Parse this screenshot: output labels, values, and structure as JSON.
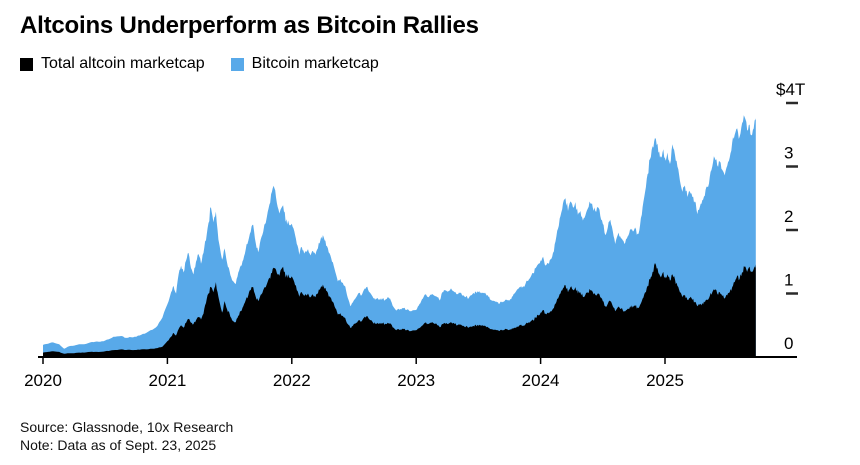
{
  "title": "Altcoins Underperform as Bitcoin Rallies",
  "legend": {
    "items": [
      {
        "label": "Total altcoin marketcap",
        "color": "#000000"
      },
      {
        "label": "Bitcoin marketcap",
        "color": "#58a9e9"
      }
    ]
  },
  "footer": {
    "source": "Source: Glassnode, 10x Research",
    "note": "Note: Data as of Sept. 23, 2025"
  },
  "chart_data": {
    "type": "area",
    "stacked": true,
    "title": "Altcoins Underperform as Bitcoin Rallies",
    "unit": "USD trillions",
    "xlim": [
      2020.0,
      2025.73
    ],
    "ylim": [
      0,
      4
    ],
    "x_ticks": [
      2020,
      2021,
      2022,
      2023,
      2024,
      2025
    ],
    "y_ticks": [
      0,
      1,
      2,
      3,
      4
    ],
    "y_tick_labels": [
      "0",
      "1",
      "2",
      "3",
      "$4T"
    ],
    "grid": false,
    "legend_position": "top-left",
    "series_names": [
      "Total altcoin marketcap",
      "Bitcoin marketcap"
    ],
    "series_colors": [
      "#000000",
      "#58a9e9"
    ],
    "points_format": [
      "year_decimal",
      "altcoin_marketcap_T",
      "bitcoin_marketcap_T"
    ],
    "points": [
      [
        2020.0,
        0.07,
        0.12
      ],
      [
        2020.04,
        0.08,
        0.13
      ],
      [
        2020.08,
        0.09,
        0.14
      ],
      [
        2020.13,
        0.08,
        0.12
      ],
      [
        2020.17,
        0.05,
        0.08
      ],
      [
        2020.21,
        0.06,
        0.11
      ],
      [
        2020.25,
        0.06,
        0.12
      ],
      [
        2020.29,
        0.07,
        0.13
      ],
      [
        2020.33,
        0.07,
        0.13
      ],
      [
        2020.38,
        0.08,
        0.15
      ],
      [
        2020.42,
        0.08,
        0.16
      ],
      [
        2020.46,
        0.08,
        0.16
      ],
      [
        2020.5,
        0.09,
        0.17
      ],
      [
        2020.54,
        0.1,
        0.19
      ],
      [
        2020.58,
        0.11,
        0.21
      ],
      [
        2020.63,
        0.12,
        0.21
      ],
      [
        2020.67,
        0.11,
        0.19
      ],
      [
        2020.71,
        0.11,
        0.2
      ],
      [
        2020.75,
        0.11,
        0.21
      ],
      [
        2020.79,
        0.12,
        0.23
      ],
      [
        2020.83,
        0.12,
        0.26
      ],
      [
        2020.88,
        0.13,
        0.3
      ],
      [
        2020.92,
        0.14,
        0.35
      ],
      [
        2020.96,
        0.16,
        0.46
      ],
      [
        2021.0,
        0.25,
        0.58
      ],
      [
        2021.03,
        0.32,
        0.7
      ],
      [
        2021.05,
        0.38,
        0.74
      ],
      [
        2021.07,
        0.34,
        0.66
      ],
      [
        2021.09,
        0.44,
        0.86
      ],
      [
        2021.11,
        0.5,
        0.94
      ],
      [
        2021.13,
        0.46,
        0.87
      ],
      [
        2021.15,
        0.54,
        0.98
      ],
      [
        2021.17,
        0.6,
        1.04
      ],
      [
        2021.19,
        0.54,
        0.86
      ],
      [
        2021.21,
        0.52,
        0.78
      ],
      [
        2021.23,
        0.58,
        0.92
      ],
      [
        2021.25,
        0.63,
        0.99
      ],
      [
        2021.27,
        0.59,
        0.88
      ],
      [
        2021.29,
        0.68,
        0.96
      ],
      [
        2021.31,
        0.85,
        0.99
      ],
      [
        2021.33,
        1.0,
        1.11
      ],
      [
        2021.35,
        1.1,
        1.26
      ],
      [
        2021.37,
        1.02,
        1.1
      ],
      [
        2021.39,
        1.18,
        1.11
      ],
      [
        2021.41,
        0.95,
        0.9
      ],
      [
        2021.44,
        0.7,
        0.83
      ],
      [
        2021.46,
        0.88,
        0.83
      ],
      [
        2021.48,
        0.75,
        0.73
      ],
      [
        2021.5,
        0.68,
        0.67
      ],
      [
        2021.52,
        0.58,
        0.63
      ],
      [
        2021.55,
        0.55,
        0.6
      ],
      [
        2021.57,
        0.65,
        0.68
      ],
      [
        2021.59,
        0.72,
        0.72
      ],
      [
        2021.61,
        0.8,
        0.73
      ],
      [
        2021.63,
        0.9,
        0.8
      ],
      [
        2021.65,
        0.97,
        0.86
      ],
      [
        2021.67,
        1.05,
        0.92
      ],
      [
        2021.69,
        1.1,
        0.98
      ],
      [
        2021.71,
        0.95,
        0.85
      ],
      [
        2021.73,
        0.88,
        0.77
      ],
      [
        2021.75,
        0.98,
        0.87
      ],
      [
        2021.77,
        1.05,
        0.92
      ],
      [
        2021.8,
        1.15,
        1.06
      ],
      [
        2021.82,
        1.25,
        1.15
      ],
      [
        2021.84,
        1.32,
        1.28
      ],
      [
        2021.86,
        1.4,
        1.26
      ],
      [
        2021.88,
        1.32,
        1.1
      ],
      [
        2021.9,
        1.28,
        0.98
      ],
      [
        2021.93,
        1.42,
        0.97
      ],
      [
        2021.95,
        1.25,
        0.88
      ],
      [
        2021.97,
        1.3,
        0.85
      ],
      [
        2022.0,
        1.27,
        0.83
      ],
      [
        2022.02,
        1.18,
        0.8
      ],
      [
        2022.04,
        1.05,
        0.73
      ],
      [
        2022.06,
        0.95,
        0.66
      ],
      [
        2022.08,
        1.02,
        0.71
      ],
      [
        2022.1,
        0.96,
        0.67
      ],
      [
        2022.13,
        1.0,
        0.7
      ],
      [
        2022.15,
        0.94,
        0.66
      ],
      [
        2022.17,
        0.98,
        0.69
      ],
      [
        2022.19,
        0.94,
        0.67
      ],
      [
        2022.21,
        1.0,
        0.71
      ],
      [
        2022.23,
        1.08,
        0.76
      ],
      [
        2022.25,
        1.14,
        0.78
      ],
      [
        2022.27,
        1.09,
        0.74
      ],
      [
        2022.29,
        1.01,
        0.7
      ],
      [
        2022.31,
        0.94,
        0.66
      ],
      [
        2022.33,
        0.87,
        0.62
      ],
      [
        2022.35,
        0.77,
        0.57
      ],
      [
        2022.37,
        0.67,
        0.52
      ],
      [
        2022.39,
        0.69,
        0.54
      ],
      [
        2022.41,
        0.65,
        0.52
      ],
      [
        2022.43,
        0.61,
        0.5
      ],
      [
        2022.45,
        0.52,
        0.41
      ],
      [
        2022.47,
        0.46,
        0.34
      ],
      [
        2022.49,
        0.49,
        0.37
      ],
      [
        2022.52,
        0.54,
        0.41
      ],
      [
        2022.54,
        0.58,
        0.43
      ],
      [
        2022.56,
        0.56,
        0.41
      ],
      [
        2022.58,
        0.62,
        0.44
      ],
      [
        2022.6,
        0.64,
        0.46
      ],
      [
        2022.62,
        0.6,
        0.43
      ],
      [
        2022.65,
        0.55,
        0.4
      ],
      [
        2022.67,
        0.52,
        0.38
      ],
      [
        2022.69,
        0.54,
        0.39
      ],
      [
        2022.71,
        0.52,
        0.38
      ],
      [
        2022.73,
        0.53,
        0.39
      ],
      [
        2022.75,
        0.52,
        0.38
      ],
      [
        2022.77,
        0.54,
        0.4
      ],
      [
        2022.79,
        0.53,
        0.39
      ],
      [
        2022.81,
        0.47,
        0.34
      ],
      [
        2022.84,
        0.42,
        0.31
      ],
      [
        2022.86,
        0.44,
        0.32
      ],
      [
        2022.88,
        0.43,
        0.32
      ],
      [
        2022.9,
        0.44,
        0.33
      ],
      [
        2022.92,
        0.42,
        0.32
      ],
      [
        2022.96,
        0.41,
        0.31
      ],
      [
        2023.0,
        0.42,
        0.32
      ],
      [
        2023.02,
        0.45,
        0.36
      ],
      [
        2023.04,
        0.48,
        0.4
      ],
      [
        2023.06,
        0.52,
        0.43
      ],
      [
        2023.08,
        0.54,
        0.44
      ],
      [
        2023.1,
        0.52,
        0.42
      ],
      [
        2023.12,
        0.54,
        0.44
      ],
      [
        2023.15,
        0.52,
        0.44
      ],
      [
        2023.17,
        0.5,
        0.44
      ],
      [
        2023.19,
        0.47,
        0.42
      ],
      [
        2023.21,
        0.52,
        0.5
      ],
      [
        2023.23,
        0.53,
        0.52
      ],
      [
        2023.25,
        0.52,
        0.51
      ],
      [
        2023.28,
        0.55,
        0.53
      ],
      [
        2023.31,
        0.52,
        0.5
      ],
      [
        2023.33,
        0.5,
        0.49
      ],
      [
        2023.35,
        0.51,
        0.5
      ],
      [
        2023.38,
        0.49,
        0.48
      ],
      [
        2023.4,
        0.48,
        0.47
      ],
      [
        2023.42,
        0.46,
        0.46
      ],
      [
        2023.46,
        0.49,
        0.52
      ],
      [
        2023.48,
        0.5,
        0.53
      ],
      [
        2023.5,
        0.49,
        0.53
      ],
      [
        2023.52,
        0.5,
        0.52
      ],
      [
        2023.54,
        0.49,
        0.52
      ],
      [
        2023.56,
        0.48,
        0.51
      ],
      [
        2023.58,
        0.46,
        0.49
      ],
      [
        2023.6,
        0.44,
        0.46
      ],
      [
        2023.63,
        0.43,
        0.45
      ],
      [
        2023.65,
        0.42,
        0.44
      ],
      [
        2023.67,
        0.41,
        0.43
      ],
      [
        2023.69,
        0.42,
        0.44
      ],
      [
        2023.71,
        0.43,
        0.45
      ],
      [
        2023.73,
        0.44,
        0.46
      ],
      [
        2023.75,
        0.43,
        0.46
      ],
      [
        2023.77,
        0.45,
        0.5
      ],
      [
        2023.79,
        0.46,
        0.54
      ],
      [
        2023.81,
        0.48,
        0.58
      ],
      [
        2023.83,
        0.5,
        0.6
      ],
      [
        2023.85,
        0.49,
        0.6
      ],
      [
        2023.88,
        0.52,
        0.64
      ],
      [
        2023.9,
        0.54,
        0.66
      ],
      [
        2023.92,
        0.56,
        0.7
      ],
      [
        2023.94,
        0.58,
        0.74
      ],
      [
        2023.96,
        0.62,
        0.78
      ],
      [
        2023.98,
        0.66,
        0.8
      ],
      [
        2024.0,
        0.7,
        0.82
      ],
      [
        2024.02,
        0.74,
        0.84
      ],
      [
        2024.04,
        0.68,
        0.76
      ],
      [
        2024.06,
        0.7,
        0.78
      ],
      [
        2024.08,
        0.72,
        0.82
      ],
      [
        2024.1,
        0.76,
        0.88
      ],
      [
        2024.12,
        0.84,
        0.98
      ],
      [
        2024.14,
        0.92,
        1.1
      ],
      [
        2024.16,
        1.0,
        1.22
      ],
      [
        2024.18,
        1.08,
        1.34
      ],
      [
        2024.2,
        1.13,
        1.37
      ],
      [
        2024.22,
        1.02,
        1.28
      ],
      [
        2024.24,
        1.1,
        1.35
      ],
      [
        2024.26,
        1.06,
        1.3
      ],
      [
        2024.28,
        1.1,
        1.34
      ],
      [
        2024.3,
        1.0,
        1.24
      ],
      [
        2024.32,
        1.02,
        1.28
      ],
      [
        2024.34,
        0.95,
        1.2
      ],
      [
        2024.36,
        0.98,
        1.25
      ],
      [
        2024.38,
        1.02,
        1.32
      ],
      [
        2024.4,
        1.05,
        1.37
      ],
      [
        2024.42,
        1.02,
        1.33
      ],
      [
        2024.44,
        0.98,
        1.32
      ],
      [
        2024.46,
        1.0,
        1.36
      ],
      [
        2024.48,
        0.94,
        1.28
      ],
      [
        2024.5,
        0.88,
        1.22
      ],
      [
        2024.52,
        0.8,
        1.12
      ],
      [
        2024.54,
        0.84,
        1.2
      ],
      [
        2024.56,
        0.88,
        1.28
      ],
      [
        2024.58,
        0.8,
        1.18
      ],
      [
        2024.6,
        0.72,
        1.06
      ],
      [
        2024.62,
        0.78,
        1.14
      ],
      [
        2024.64,
        0.76,
        1.14
      ],
      [
        2024.66,
        0.74,
        1.1
      ],
      [
        2024.68,
        0.72,
        1.08
      ],
      [
        2024.7,
        0.76,
        1.14
      ],
      [
        2024.72,
        0.8,
        1.22
      ],
      [
        2024.74,
        0.78,
        1.2
      ],
      [
        2024.76,
        0.8,
        1.24
      ],
      [
        2024.78,
        0.78,
        1.16
      ],
      [
        2024.8,
        0.82,
        1.26
      ],
      [
        2024.82,
        0.92,
        1.44
      ],
      [
        2024.84,
        1.02,
        1.58
      ],
      [
        2024.86,
        1.12,
        1.76
      ],
      [
        2024.88,
        1.22,
        1.9
      ],
      [
        2024.9,
        1.34,
        1.98
      ],
      [
        2024.92,
        1.48,
        1.97
      ],
      [
        2024.94,
        1.4,
        1.96
      ],
      [
        2024.96,
        1.28,
        1.86
      ],
      [
        2024.98,
        1.32,
        1.9
      ],
      [
        2025.0,
        1.27,
        1.86
      ],
      [
        2025.02,
        1.3,
        1.92
      ],
      [
        2025.04,
        1.2,
        1.84
      ],
      [
        2025.06,
        1.3,
        2.05
      ],
      [
        2025.08,
        1.22,
        1.96
      ],
      [
        2025.1,
        1.12,
        1.88
      ],
      [
        2025.12,
        1.02,
        1.76
      ],
      [
        2025.14,
        0.94,
        1.66
      ],
      [
        2025.16,
        0.98,
        1.72
      ],
      [
        2025.18,
        0.9,
        1.62
      ],
      [
        2025.2,
        0.93,
        1.67
      ],
      [
        2025.22,
        0.9,
        1.62
      ],
      [
        2025.24,
        0.87,
        1.58
      ],
      [
        2025.26,
        0.8,
        1.45
      ],
      [
        2025.28,
        0.82,
        1.54
      ],
      [
        2025.3,
        0.85,
        1.62
      ],
      [
        2025.32,
        0.86,
        1.68
      ],
      [
        2025.34,
        0.9,
        1.78
      ],
      [
        2025.36,
        0.96,
        1.88
      ],
      [
        2025.38,
        1.02,
        1.98
      ],
      [
        2025.4,
        1.05,
        2.08
      ],
      [
        2025.42,
        1.0,
        2.02
      ],
      [
        2025.44,
        1.02,
        2.06
      ],
      [
        2025.46,
        0.96,
        1.99
      ],
      [
        2025.48,
        0.92,
        1.94
      ],
      [
        2025.5,
        0.97,
        2.04
      ],
      [
        2025.52,
        1.02,
        2.12
      ],
      [
        2025.54,
        1.1,
        2.28
      ],
      [
        2025.56,
        1.18,
        2.32
      ],
      [
        2025.58,
        1.28,
        2.32
      ],
      [
        2025.6,
        1.23,
        2.24
      ],
      [
        2025.62,
        1.34,
        2.34
      ],
      [
        2025.64,
        1.42,
        2.36
      ],
      [
        2025.66,
        1.34,
        2.24
      ],
      [
        2025.68,
        1.42,
        2.24
      ],
      [
        2025.7,
        1.34,
        2.16
      ],
      [
        2025.72,
        1.43,
        2.29
      ],
      [
        2025.73,
        1.46,
        2.3
      ]
    ]
  }
}
